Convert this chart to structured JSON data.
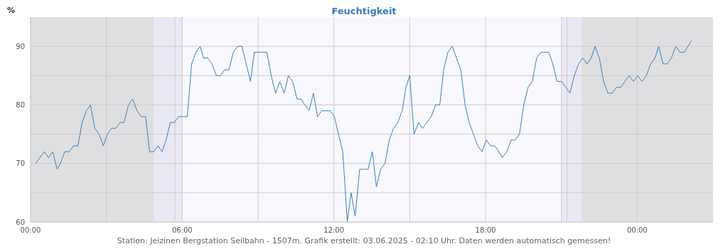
{
  "chart_data": {
    "type": "line",
    "title": "Feuchtigkeit",
    "ylabel": "%",
    "annotations": [
      "Station: Jeizinen Bergstation Seilbahn - 1507m. Grafik erstellt: 03.06.2025 - 02:10 Uhr. Daten werden automatisch gemessen!"
    ],
    "x": [
      0.2,
      0.54,
      0.71,
      0.88,
      1.05,
      1.18,
      1.35,
      1.53,
      1.7,
      1.87,
      2.04,
      2.21,
      2.37,
      2.54,
      2.71,
      2.88,
      3.04,
      3.2,
      3.37,
      3.54,
      3.7,
      3.87,
      4.04,
      4.21,
      4.38,
      4.55,
      4.71,
      4.88,
      5.04,
      5.2,
      5.36,
      5.53,
      5.69,
      5.86,
      6.03,
      6.2,
      6.37,
      6.54,
      6.71,
      6.84,
      7.01,
      7.18,
      7.35,
      7.51,
      7.68,
      7.85,
      8.02,
      8.19,
      8.36,
      8.53,
      8.7,
      8.85,
      9.01,
      9.18,
      9.35,
      9.52,
      9.69,
      9.86,
      10.03,
      10.2,
      10.37,
      10.54,
      10.7,
      10.85,
      11.02,
      11.19,
      11.35,
      11.52,
      11.69,
      11.85,
      12.02,
      12.18,
      12.35,
      12.53,
      12.68,
      12.84,
      13.02,
      13.18,
      13.35,
      13.52,
      13.68,
      13.85,
      14.02,
      14.19,
      14.36,
      14.53,
      14.7,
      14.85,
      15.0,
      15.17,
      15.35,
      15.51,
      15.68,
      15.85,
      16.02,
      16.19,
      16.34,
      16.51,
      16.68,
      16.85,
      17.02,
      17.19,
      17.35,
      17.52,
      17.69,
      17.86,
      18.03,
      18.2,
      18.36,
      18.53,
      18.66,
      18.84,
      19.01,
      19.17,
      19.34,
      19.51,
      19.68,
      19.85,
      20.02,
      20.19,
      20.36,
      20.5,
      20.66,
      20.83,
      21.0,
      21.17,
      21.34,
      21.51,
      21.68,
      21.85,
      22.01,
      22.18,
      22.33,
      22.5,
      22.67,
      22.84,
      23.01,
      23.18,
      23.35,
      23.51,
      23.68,
      23.85,
      24.02,
      24.19,
      24.36,
      24.53,
      24.7,
      24.85,
      25.02,
      25.18,
      25.35,
      25.52,
      25.69,
      25.86,
      26.15
    ],
    "series": [
      {
        "color": "#3a7fb8",
        "values": [
          70,
          72,
          71,
          72,
          69,
          70,
          72,
          72,
          73,
          73,
          77,
          79,
          80,
          76,
          75,
          73,
          75,
          76,
          76,
          77,
          77,
          80,
          81,
          79,
          78,
          78,
          72,
          72,
          73,
          72,
          74,
          77,
          77,
          78,
          78,
          78,
          87,
          89,
          90,
          88,
          88,
          87,
          85,
          85,
          86,
          86,
          89,
          90,
          90,
          87,
          84,
          89,
          89,
          89,
          89,
          85,
          82,
          84,
          82,
          85,
          84,
          81,
          81,
          80,
          79,
          82,
          78,
          79,
          79,
          79,
          78,
          75,
          72,
          60,
          65,
          61,
          69,
          69,
          69,
          72,
          66,
          69,
          70,
          74,
          76,
          77,
          79,
          83,
          85,
          75,
          77,
          76,
          77,
          78,
          80,
          80,
          86,
          89,
          90,
          88,
          86,
          80,
          77,
          75,
          73,
          72,
          74,
          73,
          73,
          72,
          71,
          72,
          74,
          74,
          75,
          80,
          83,
          84,
          88,
          89,
          89,
          89,
          87,
          84,
          84,
          83,
          82,
          85,
          87,
          88,
          87,
          88,
          90,
          88,
          84,
          82,
          82,
          83,
          83,
          84,
          85,
          84,
          85,
          84,
          85,
          87,
          88,
          90,
          87,
          87,
          88,
          90,
          89,
          89,
          91
        ]
      }
    ],
    "xlim": [
      0,
      27
    ],
    "xticks": [
      {
        "value": 0,
        "label": "00:00"
      },
      {
        "value": 3,
        "label": null
      },
      {
        "value": 6,
        "label": "06:00"
      },
      {
        "value": 9,
        "label": null
      },
      {
        "value": 12,
        "label": "12:00"
      },
      {
        "value": 15,
        "label": null
      },
      {
        "value": 18,
        "label": "18:00"
      },
      {
        "value": 21,
        "label": null
      },
      {
        "value": 24,
        "label": "00:00"
      }
    ],
    "ylim": [
      60,
      95
    ],
    "yticks": [
      60,
      {
        "value": 65,
        "label": null
      },
      70,
      {
        "value": 75,
        "label": null
      },
      80,
      {
        "value": 85,
        "label": null
      },
      90
    ],
    "grid": true,
    "marker": "none",
    "line_style": "solid",
    "bands": [
      {
        "axis": "x",
        "from": 0,
        "to": 4.9,
        "color": "#dfdfe1"
      },
      {
        "axis": "x",
        "from": 4.9,
        "to": 6,
        "color": "#ebe8f5"
      },
      {
        "axis": "x",
        "from": 6,
        "to": 21,
        "color": "#f9f8fe"
      },
      {
        "axis": "x",
        "from": 21,
        "to": 21.8,
        "color": "#ebe8f5"
      },
      {
        "axis": "x",
        "from": 21.8,
        "to": 27,
        "color": "#dfdfe1"
      }
    ],
    "ref_lines": [
      {
        "axis": "x",
        "value": 5.71,
        "color": "#cccccc"
      },
      {
        "axis": "x",
        "value": 21.22,
        "color": "#cccccc"
      }
    ]
  }
}
